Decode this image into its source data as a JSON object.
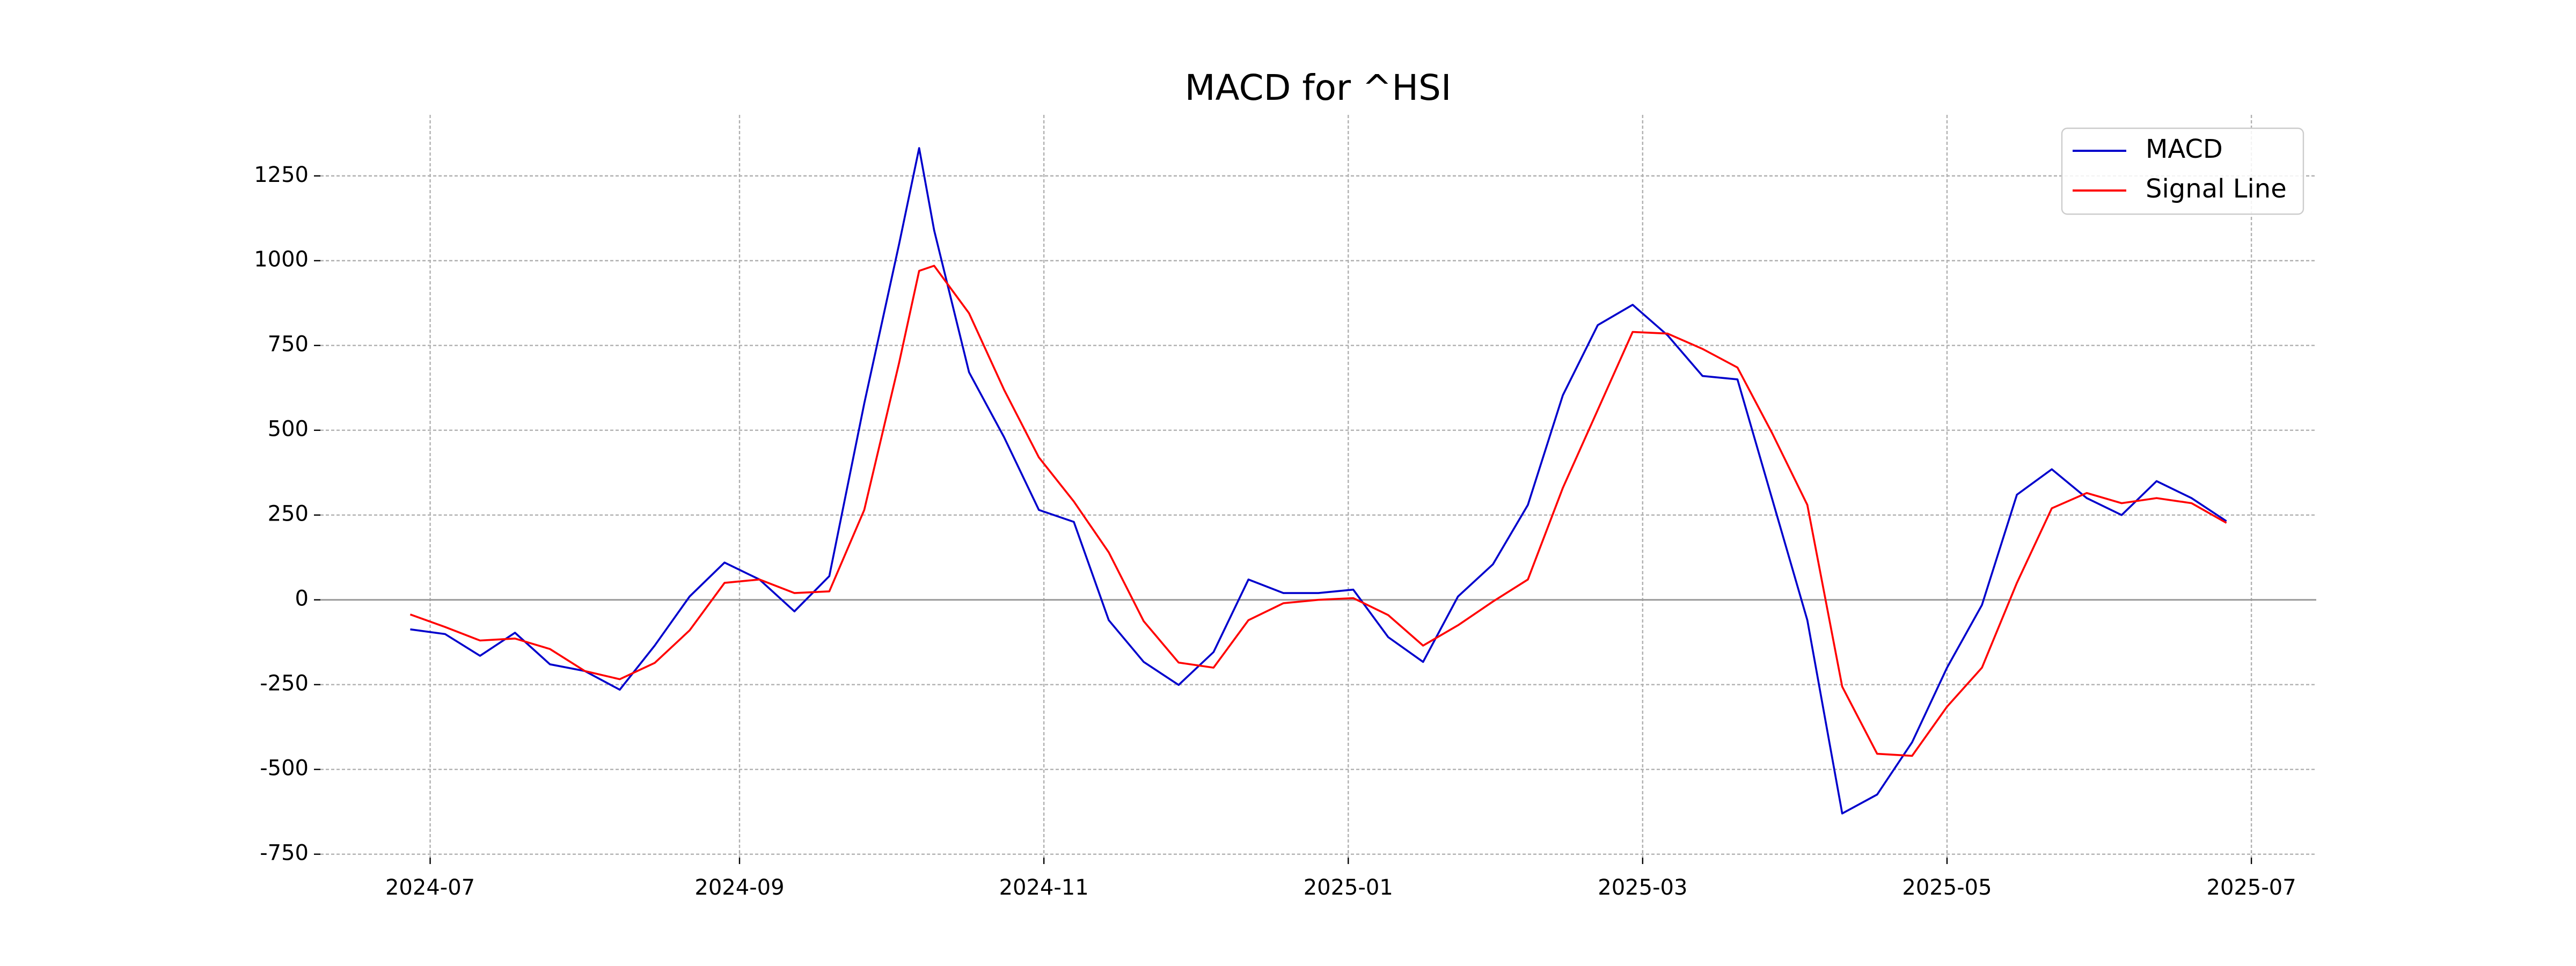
{
  "chart_data": {
    "type": "line",
    "title": "MACD for ^HSI",
    "x": [
      "2024-06-27",
      "2024-07-04",
      "2024-07-11",
      "2024-07-18",
      "2024-07-25",
      "2024-08-01",
      "2024-08-08",
      "2024-08-15",
      "2024-08-22",
      "2024-08-29",
      "2024-09-05",
      "2024-09-12",
      "2024-09-19",
      "2024-09-26",
      "2024-10-03",
      "2024-10-07",
      "2024-10-10",
      "2024-10-17",
      "2024-10-24",
      "2024-10-31",
      "2024-11-07",
      "2024-11-14",
      "2024-11-21",
      "2024-11-28",
      "2024-12-05",
      "2024-12-12",
      "2024-12-19",
      "2024-12-26",
      "2025-01-02",
      "2025-01-09",
      "2025-01-16",
      "2025-01-23",
      "2025-01-30",
      "2025-02-06",
      "2025-02-13",
      "2025-02-20",
      "2025-02-27",
      "2025-03-06",
      "2025-03-13",
      "2025-03-20",
      "2025-03-27",
      "2025-04-03",
      "2025-04-10",
      "2025-04-17",
      "2025-04-24",
      "2025-05-01",
      "2025-05-08",
      "2025-05-15",
      "2025-05-22",
      "2025-05-29",
      "2025-06-05",
      "2025-06-12",
      "2025-06-19",
      "2025-06-26"
    ],
    "series": [
      {
        "name": "MACD",
        "color": "#0000cc",
        "values": [
          -87,
          -101,
          -165,
          -97,
          -190,
          -210,
          -265,
          -135,
          10,
          110,
          60,
          -34,
          70,
          579,
          1050,
          1332,
          1090,
          671,
          480,
          265,
          230,
          -60,
          -183,
          -251,
          -154,
          60,
          20,
          20,
          30,
          -110,
          -183,
          10,
          105,
          280,
          603,
          810,
          870,
          780,
          660,
          650,
          295,
          -60,
          -630,
          -574,
          -420,
          -200,
          -15,
          310,
          385,
          300,
          250,
          350,
          300,
          232
        ]
      },
      {
        "name": "Signal Line",
        "color": "#ff0000",
        "values": [
          -43,
          -80,
          -120,
          -114,
          -145,
          -210,
          -234,
          -186,
          -90,
          50,
          60,
          20,
          25,
          265,
          700,
          970,
          985,
          845,
          620,
          420,
          290,
          140,
          -63,
          -185,
          -200,
          -60,
          -10,
          0,
          5,
          -45,
          -135,
          -75,
          -5,
          60,
          330,
          560,
          790,
          785,
          740,
          685,
          490,
          280,
          -256,
          -454,
          -460,
          -315,
          -200,
          50,
          270,
          315,
          285,
          300,
          285,
          227
        ]
      }
    ],
    "xlim": [
      "2024-06-09",
      "2025-07-14"
    ],
    "xticks": [
      {
        "value": "2024-07-01",
        "label": "2024-07"
      },
      {
        "value": "2024-09-01",
        "label": "2024-09"
      },
      {
        "value": "2024-11-01",
        "label": "2024-11"
      },
      {
        "value": "2025-01-01",
        "label": "2025-01"
      },
      {
        "value": "2025-03-01",
        "label": "2025-03"
      },
      {
        "value": "2025-05-01",
        "label": "2025-05"
      },
      {
        "value": "2025-07-01",
        "label": "2025-07"
      }
    ],
    "ylim": [
      -760,
      1430
    ],
    "yticks": [
      -750,
      -500,
      -250,
      0,
      250,
      500,
      750,
      1000,
      1250
    ],
    "grid": true,
    "legend": "upper right"
  }
}
